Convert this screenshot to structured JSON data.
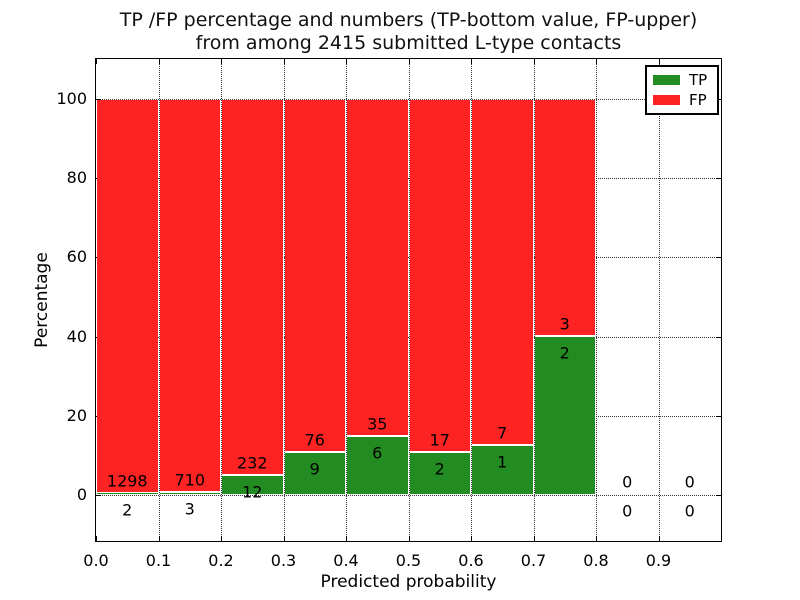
{
  "title": {
    "line1": "TP /FP percentage and numbers (TP-bottom value, FP-upper)",
    "line2": "from among 2415 submitted L-type contacts"
  },
  "axes": {
    "xlabel": "Predicted probability",
    "ylabel": "Percentage",
    "xtick_labels": [
      "0.0",
      "0.1",
      "0.2",
      "0.3",
      "0.4",
      "0.5",
      "0.6",
      "0.7",
      "0.8",
      "0.9"
    ],
    "ytick_labels": [
      "0",
      "20",
      "40",
      "60",
      "80",
      "100"
    ],
    "grid_style": "dotted"
  },
  "legend": {
    "position": "upper-right",
    "items": [
      {
        "label": "TP",
        "color": "#228b22"
      },
      {
        "label": "FP",
        "color": "#fd2323"
      }
    ]
  },
  "chart_data": {
    "type": "bar",
    "stacked": true,
    "normalized_to_percent": true,
    "title": "TP /FP percentage and numbers (TP-bottom value, FP-upper) from among 2415 submitted L-type contacts",
    "xlabel": "Predicted probability",
    "ylabel": "Percentage",
    "total_contacts": 2415,
    "bin_edges": [
      0.0,
      0.1,
      0.2,
      0.3,
      0.4,
      0.5,
      0.6,
      0.7,
      0.8,
      0.9,
      1.0
    ],
    "series": [
      {
        "name": "TP",
        "color": "#228b22",
        "counts": [
          2,
          3,
          12,
          9,
          6,
          2,
          1,
          2,
          0,
          0
        ],
        "percent": [
          0.15,
          0.42,
          4.92,
          10.59,
          14.63,
          10.53,
          12.5,
          40.0,
          0,
          0
        ]
      },
      {
        "name": "FP",
        "color": "#fd2323",
        "counts": [
          1298,
          710,
          232,
          76,
          35,
          17,
          7,
          3,
          0,
          0
        ],
        "percent": [
          99.85,
          99.58,
          95.08,
          89.41,
          85.37,
          89.47,
          87.5,
          60.0,
          0,
          0
        ]
      }
    ],
    "xlim": [
      0,
      1.0
    ],
    "ylim": [
      -11,
      111
    ],
    "yticks": [
      0,
      20,
      40,
      60,
      80,
      100
    ],
    "label_rule": "FP count printed just above TP/FP boundary, TP count just below it"
  }
}
